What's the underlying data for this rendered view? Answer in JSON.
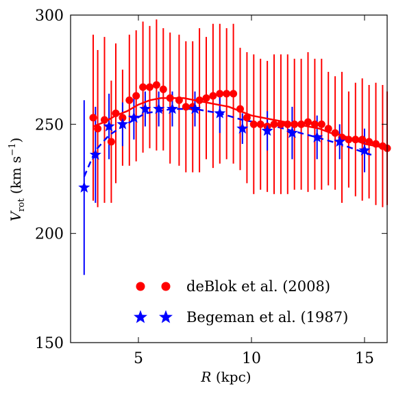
{
  "chart_data": {
    "type": "scatter",
    "xlabel": "R (kpc)",
    "ylabel": "V_rot (km s^-1)",
    "xlim": [
      2.0,
      16.0
    ],
    "ylim": [
      150,
      300
    ],
    "xticks": [
      5,
      10,
      15
    ],
    "yticks": [
      150,
      200,
      250,
      300
    ],
    "grid": false,
    "legend_position": "bottom-right",
    "series": [
      {
        "name": "deBlok et al. (2008)",
        "color": "#ff0000",
        "marker": "circle",
        "fit_line_style": "solid",
        "x": [
          3.0,
          3.2,
          3.5,
          3.8,
          4.0,
          4.3,
          4.6,
          4.9,
          5.2,
          5.5,
          5.8,
          6.1,
          6.4,
          6.8,
          7.1,
          7.4,
          7.7,
          8.0,
          8.3,
          8.6,
          8.9,
          9.2,
          9.5,
          9.8,
          10.1,
          10.4,
          10.7,
          11.0,
          11.3,
          11.6,
          11.9,
          12.2,
          12.5,
          12.8,
          13.1,
          13.4,
          13.7,
          14.0,
          14.3,
          14.6,
          14.9,
          15.2,
          15.5,
          15.8,
          16.0
        ],
        "y": [
          253,
          248,
          252,
          242,
          255,
          253,
          261,
          263,
          267,
          267,
          268,
          266,
          262,
          261,
          258,
          258,
          261,
          262,
          263,
          264,
          264,
          264,
          257,
          253,
          250,
          250,
          249,
          250,
          250,
          250,
          250,
          250,
          251,
          250,
          250,
          248,
          246,
          244,
          243,
          243,
          243,
          242,
          241,
          240,
          239
        ],
        "errors": [
          38,
          36,
          38,
          28,
          32,
          22,
          30,
          30,
          30,
          28,
          30,
          28,
          30,
          30,
          30,
          30,
          33,
          28,
          33,
          32,
          30,
          32,
          28,
          30,
          32,
          30,
          30,
          32,
          32,
          32,
          30,
          30,
          32,
          30,
          30,
          26,
          26,
          30,
          22,
          26,
          28,
          26,
          28,
          28,
          26
        ],
        "fit_x": [
          3.0,
          3.5,
          4.0,
          4.5,
          5.0,
          5.5,
          6.0,
          6.5,
          7.0,
          7.5,
          8.0,
          8.5,
          9.0,
          9.5,
          10.0,
          10.5,
          11.0,
          11.5,
          12.0,
          12.5,
          13.0,
          13.5,
          14.0,
          14.5,
          15.0,
          15.5,
          16.0
        ],
        "fit_y": [
          249,
          251,
          254,
          256,
          259,
          261,
          262,
          262,
          262,
          261,
          260,
          259,
          258,
          256,
          254,
          253,
          252,
          251,
          250,
          249,
          248,
          246,
          245,
          243,
          241,
          240,
          239
        ]
      },
      {
        "name": "Begeman et al. (1987)",
        "color": "#0000ff",
        "marker": "star",
        "fit_line_style": "dashed",
        "x": [
          2.6,
          3.1,
          3.7,
          4.3,
          4.8,
          5.3,
          5.9,
          6.5,
          7.5,
          8.6,
          9.6,
          10.7,
          11.8,
          12.9,
          13.9,
          15.0
        ],
        "y": [
          221,
          236,
          249,
          250,
          253,
          257,
          257,
          257,
          257,
          255,
          248,
          247,
          246,
          244,
          242,
          238
        ],
        "errors": [
          40,
          22,
          15,
          10,
          10,
          8,
          8,
          8,
          8,
          9,
          7,
          9,
          12,
          10,
          8,
          10
        ],
        "fit_x": [
          2.6,
          3.1,
          3.7,
          4.3,
          4.8,
          5.3,
          5.9,
          6.5,
          7.5,
          8.6,
          9.6,
          10.7,
          11.8,
          12.9,
          13.9,
          15.0,
          15.3
        ],
        "fit_y": [
          226,
          238,
          245,
          249,
          252,
          255,
          256,
          257,
          257,
          255,
          252,
          250,
          247,
          244,
          241,
          237,
          236
        ]
      }
    ]
  }
}
